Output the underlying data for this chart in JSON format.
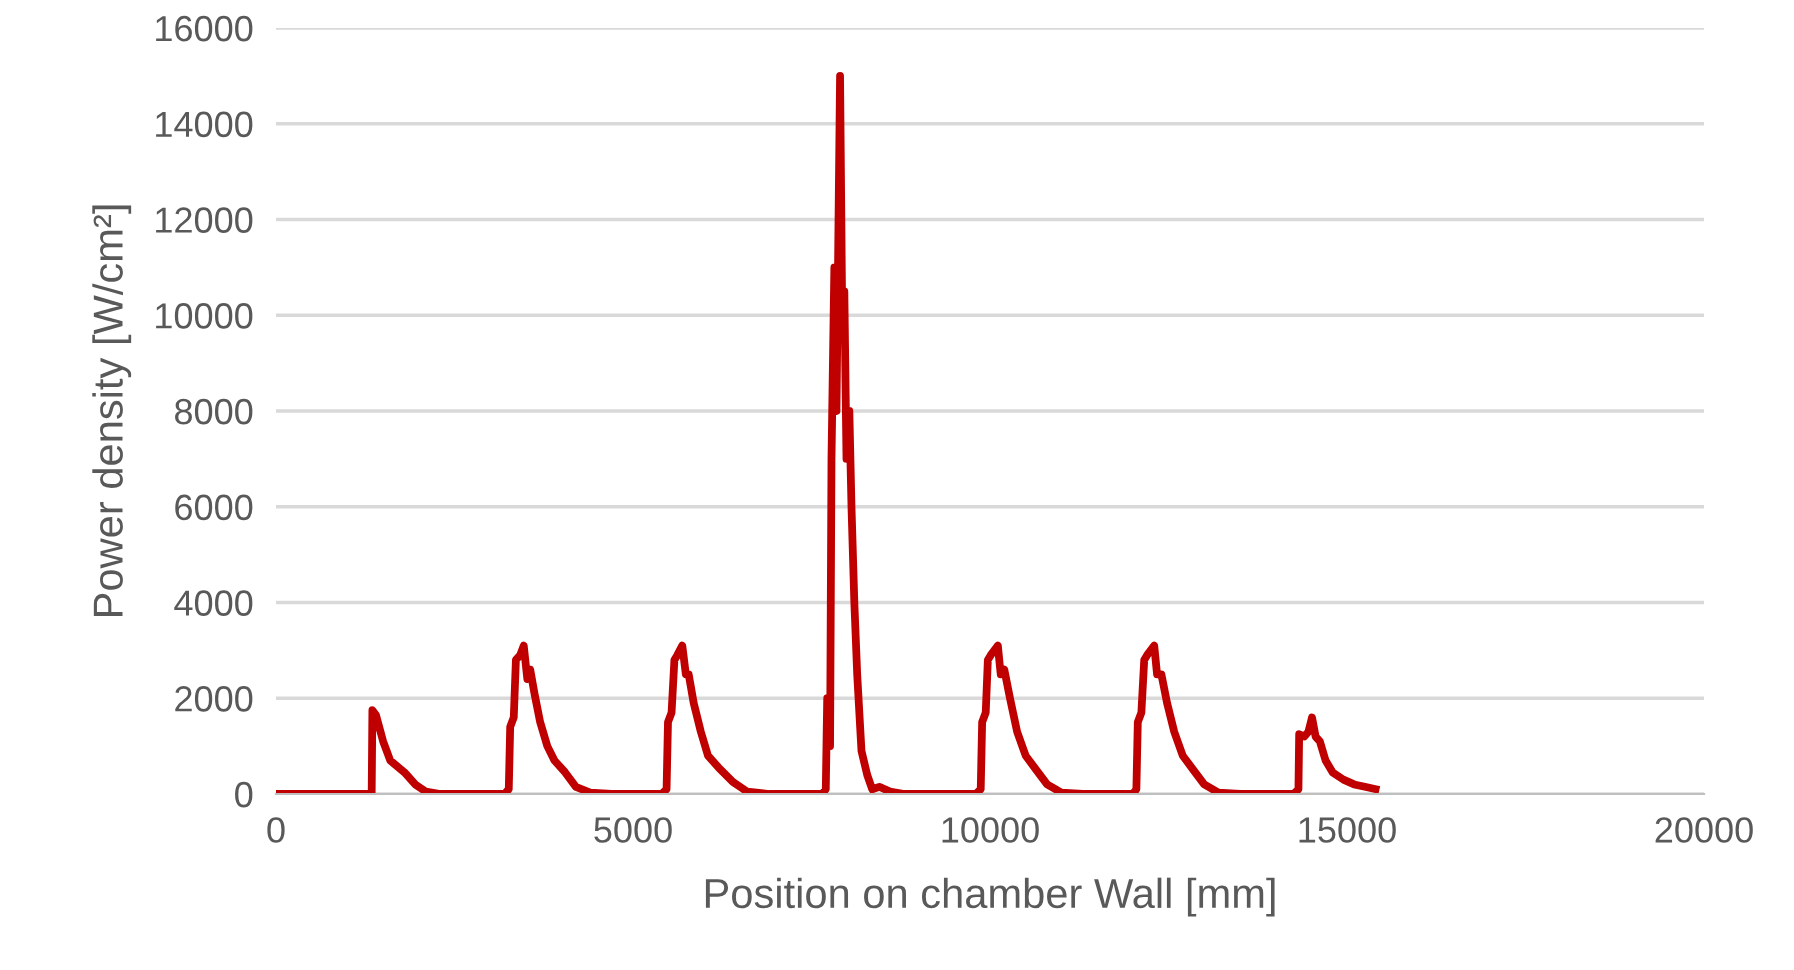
{
  "chart_data": {
    "type": "line",
    "xlabel": "Position on chamber Wall [mm]",
    "ylabel": "Power density [W/cm²]",
    "xlim": [
      0,
      20000
    ],
    "xticks": [
      0,
      5000,
      10000,
      15000,
      20000
    ],
    "ylim": [
      0,
      16000
    ],
    "yticks": [
      0,
      2000,
      4000,
      6000,
      8000,
      10000,
      12000,
      14000,
      16000
    ],
    "grid": "y",
    "marker": "none",
    "line_style": "solid",
    "series": [
      {
        "color": "#c00000",
        "x": [
          0,
          1300,
          1340,
          1350,
          1400,
          1500,
          1600,
          1800,
          1950,
          2100,
          2300,
          3200,
          3260,
          3280,
          3330,
          3360,
          3420,
          3470,
          3520,
          3560,
          3620,
          3700,
          3800,
          3900,
          4050,
          4200,
          4400,
          4700,
          5400,
          5470,
          5490,
          5540,
          5580,
          5620,
          5690,
          5740,
          5780,
          5850,
          5950,
          6050,
          6200,
          6400,
          6600,
          6900,
          7650,
          7700,
          7720,
          7760,
          7780,
          7820,
          7850,
          7900,
          7930,
          7960,
          7990,
          8030,
          8060,
          8100,
          8140,
          8200,
          8280,
          8350,
          8450,
          8600,
          8800,
          9800,
          9870,
          9890,
          9940,
          9970,
          10010,
          10110,
          10150,
          10200,
          10280,
          10380,
          10500,
          10650,
          10800,
          11000,
          11300,
          12000,
          12050,
          12070,
          12120,
          12160,
          12200,
          12300,
          12340,
          12400,
          12480,
          12580,
          12700,
          12850,
          13000,
          13200,
          13500,
          14250,
          14320,
          14330,
          14400,
          14460,
          14510,
          14560,
          14620,
          14700,
          14800,
          14950,
          15100,
          15250,
          15400
        ],
        "values": [
          0,
          0,
          0,
          1750,
          1650,
          1100,
          700,
          450,
          200,
          50,
          0,
          0,
          100,
          1400,
          1600,
          2800,
          2900,
          3100,
          2400,
          2600,
          2100,
          1500,
          1000,
          700,
          450,
          150,
          30,
          0,
          0,
          100,
          1500,
          1700,
          2800,
          2900,
          3100,
          2500,
          2500,
          1900,
          1300,
          800,
          550,
          250,
          50,
          0,
          0,
          100,
          2000,
          1000,
          7000,
          11000,
          8000,
          15000,
          10000,
          10500,
          7000,
          8000,
          6000,
          4000,
          2500,
          900,
          400,
          100,
          150,
          50,
          0,
          0,
          100,
          1500,
          1700,
          2800,
          2900,
          3100,
          2500,
          2600,
          2000,
          1300,
          800,
          500,
          200,
          30,
          0,
          0,
          100,
          1500,
          1700,
          2800,
          2900,
          3100,
          2500,
          2500,
          1900,
          1300,
          800,
          500,
          200,
          30,
          0,
          0,
          100,
          1250,
          1200,
          1300,
          1600,
          1200,
          1100,
          700,
          450,
          300,
          200,
          150,
          100
        ]
      }
    ]
  }
}
